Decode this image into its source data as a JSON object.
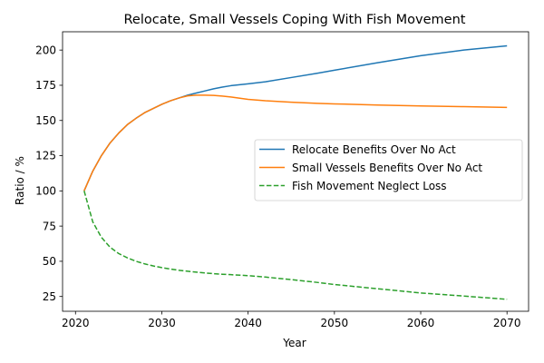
{
  "chart_data": {
    "type": "line",
    "title": "Relocate, Small Vessels Coping With Fish Movement",
    "xlabel": "Year",
    "ylabel": "Ratio / %",
    "xlim": [
      2018.5,
      2072.5
    ],
    "ylim": [
      14.5,
      213
    ],
    "xticks": [
      2020,
      2030,
      2040,
      2050,
      2060,
      2070
    ],
    "yticks": [
      25,
      50,
      75,
      100,
      125,
      150,
      175,
      200
    ],
    "grid": false,
    "legend_position": "center-right",
    "x": [
      2021,
      2022,
      2023,
      2024,
      2025,
      2026,
      2027,
      2028,
      2029,
      2030,
      2031,
      2032,
      2033,
      2034,
      2035,
      2036,
      2037,
      2038,
      2040,
      2042,
      2045,
      2048,
      2050,
      2055,
      2060,
      2065,
      2070
    ],
    "series": [
      {
        "name": "Relocate Benefits Over No Act",
        "color": "#1f77b4",
        "dash": "solid",
        "values": [
          100,
          114,
          125,
          134,
          141,
          147,
          151.5,
          155.5,
          158.5,
          161.5,
          164,
          166,
          168,
          169.5,
          171,
          172.5,
          173.7,
          174.7,
          176,
          177.5,
          180.5,
          183.5,
          185.7,
          191,
          196,
          200,
          203
        ]
      },
      {
        "name": "Small Vessels Benefits Over No Act",
        "color": "#ff7f0e",
        "dash": "solid",
        "values": [
          100,
          114,
          125,
          134,
          141,
          147,
          151.5,
          155.5,
          158.5,
          161.5,
          164,
          166,
          167.5,
          168,
          168,
          167.8,
          167.3,
          166.7,
          165,
          164,
          163,
          162.2,
          161.8,
          161,
          160.3,
          159.8,
          159.3
        ]
      },
      {
        "name": "Fish Movement Neglect Loss",
        "color": "#2ca02c",
        "dash": "dashed",
        "values": [
          100,
          78,
          67,
          60,
          55.5,
          52.5,
          50,
          48.2,
          46.7,
          45.5,
          44.5,
          43.6,
          42.9,
          42.3,
          41.7,
          41.2,
          40.8,
          40.5,
          39.8,
          38.8,
          37,
          35,
          33.5,
          30.5,
          27.5,
          25.3,
          23
        ]
      }
    ]
  }
}
